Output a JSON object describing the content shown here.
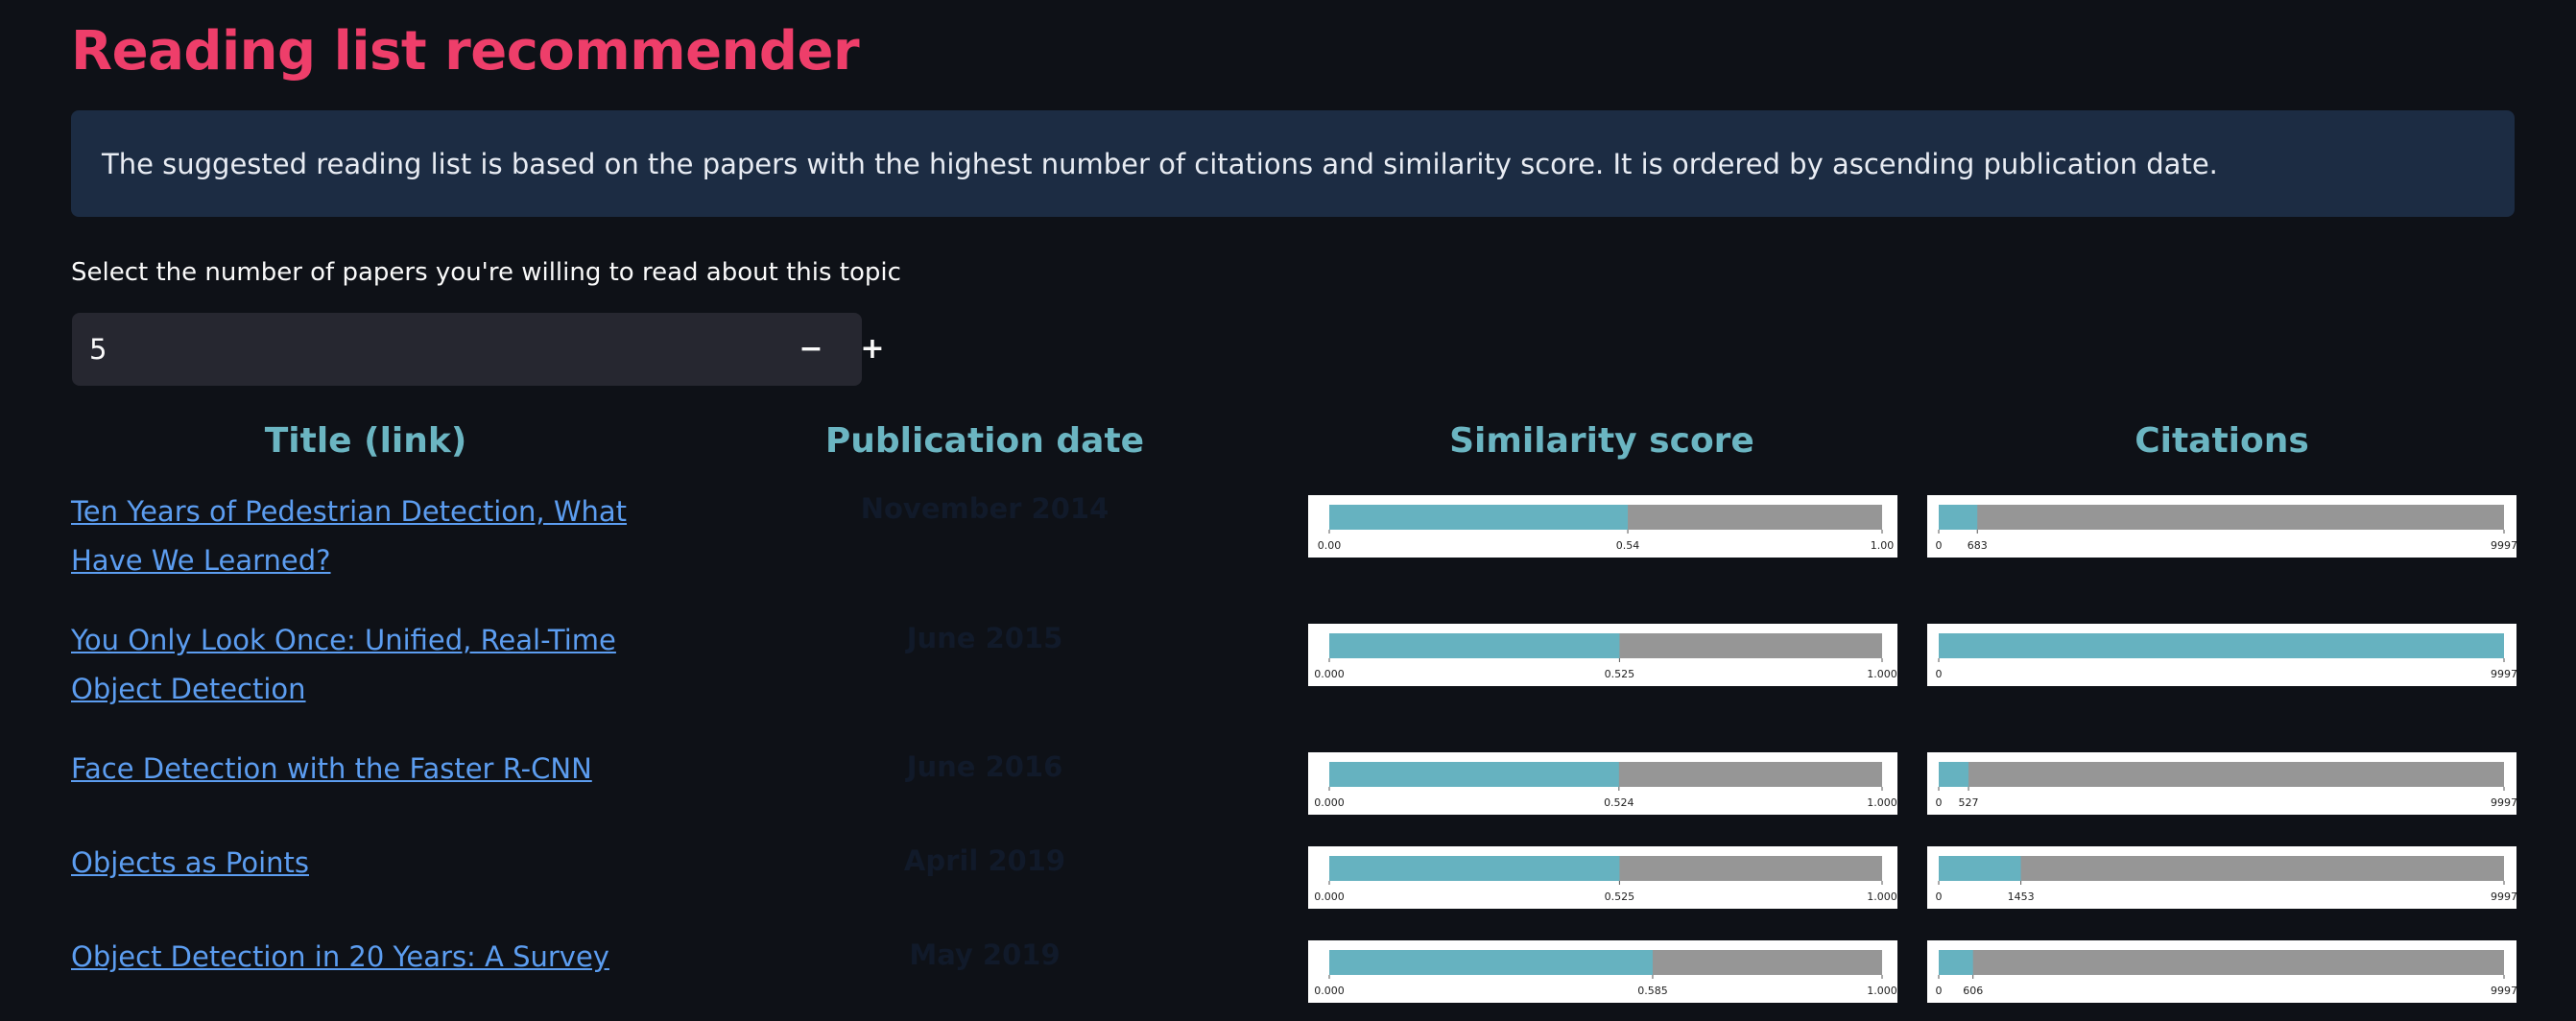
{
  "page": {
    "title": "Reading list recommender",
    "info_text": "The suggested reading list is based on the papers with the highest number of citations and similarity score. It is ordered by ascending publication date.",
    "select_label": "Select the number of papers you're willing to read about this topic",
    "stepper_value": "5",
    "minus_label": "−",
    "plus_label": "+"
  },
  "table": {
    "headers": {
      "title": "Title (link)",
      "date": "Publication date",
      "similarity": "Similarity score",
      "citations": "Citations"
    },
    "rows": [
      {
        "title": "Ten Years of Pedestrian Detection, What Have We Learned?",
        "date": "November 2014",
        "similarity": {
          "min": "0.00",
          "value": 0.54,
          "value_label": "0.54",
          "max": "1.00"
        },
        "citations": {
          "min": "0",
          "value": 683,
          "value_label": "683",
          "max": "9997",
          "max_value": 9997
        }
      },
      {
        "title": "You Only Look Once: Unified, Real-Time Object Detection",
        "date": "June 2015",
        "similarity": {
          "min": "0.000",
          "value": 0.525,
          "value_label": "0.525",
          "max": "1.000"
        },
        "citations": {
          "min": "0",
          "value": 9997,
          "value_label": "",
          "max": "9997",
          "max_value": 9997
        }
      },
      {
        "title": "Face Detection with the Faster R-CNN",
        "date": "June 2016",
        "similarity": {
          "min": "0.000",
          "value": 0.524,
          "value_label": "0.524",
          "max": "1.000"
        },
        "citations": {
          "min": "0",
          "value": 527,
          "value_label": "527",
          "max": "9997",
          "max_value": 9997
        }
      },
      {
        "title": "Objects as Points",
        "date": "April 2019",
        "similarity": {
          "min": "0.000",
          "value": 0.525,
          "value_label": "0.525",
          "max": "1.000"
        },
        "citations": {
          "min": "0",
          "value": 1453,
          "value_label": "1453",
          "max": "9997",
          "max_value": 9997
        }
      },
      {
        "title": "Object Detection in 20 Years: A Survey",
        "date": "May 2019",
        "similarity": {
          "min": "0.000",
          "value": 0.585,
          "value_label": "0.585",
          "max": "1.000"
        },
        "citations": {
          "min": "0",
          "value": 606,
          "value_label": "606",
          "max": "9997",
          "max_value": 9997
        }
      }
    ]
  },
  "colors": {
    "title": "#ee3e6a",
    "header": "#6bb5c2",
    "link": "#5c9df0",
    "bar_fill": "#66b2c0",
    "bar_track": "#969696",
    "info_bg": "#1c2c43"
  }
}
